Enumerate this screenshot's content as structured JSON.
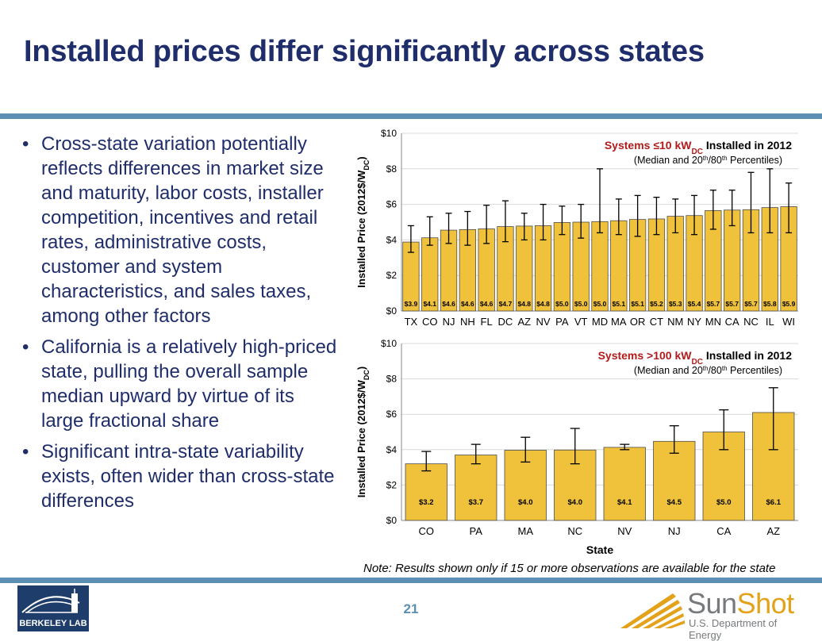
{
  "slide": {
    "title": "Installed prices differ significantly across states",
    "page_number": "21",
    "bullet_char": "•",
    "bullets": [
      "Cross-state variation potentially reflects differences in market size and maturity, labor costs, installer competition, incentives and retail rates, administrative costs, customer and system characteristics, and sales taxes, among other factors",
      "California is a relatively high-priced state, pulling the overall sample median upward by virtue of its large fractional share",
      "Significant intra-state variability exists, often wider than cross-state differences"
    ],
    "note": "Note: Results shown only if 15 or more observations are available for the state",
    "left_logo": {
      "text": "BERKELEY LAB"
    },
    "right_logo": {
      "word_part1": "Sun",
      "word_part2": "Shot",
      "subtitle": "U.S. Department of Energy"
    }
  },
  "colors": {
    "title": "#1f2d6b",
    "rule": "#5b8fb3",
    "bar_fill": "#f0c13b",
    "bar_stroke": "#4d4d4d",
    "red": "#b01c1c",
    "grid": "#d9d9d9"
  },
  "chart_data": [
    {
      "type": "bar",
      "title_red": "Systems ≤10 kW",
      "title_red_sub": "DC",
      "title_black": " Installed in 2012",
      "subtitle_pre": "(Median and 20",
      "subtitle_sup1": "th",
      "subtitle_mid": "/80",
      "subtitle_sup2": "th",
      "subtitle_post": " Percentiles)",
      "ylabel_main": "Installed Price (2012$/W",
      "ylabel_sub": "DC",
      "ylabel_end": ")",
      "xlabel": "",
      "ylim": [
        0,
        10
      ],
      "yticks": [
        "$0",
        "$2",
        "$4",
        "$6",
        "$8",
        "$10"
      ],
      "grid": true,
      "categories": [
        "TX",
        "CO",
        "NJ",
        "NH",
        "FL",
        "DC",
        "AZ",
        "NV",
        "PA",
        "VT",
        "MD",
        "MA",
        "OR",
        "CT",
        "NM",
        "NY",
        "MN",
        "CA",
        "NC",
        "IL",
        "WI"
      ],
      "values": [
        3.88,
        4.12,
        4.55,
        4.58,
        4.62,
        4.75,
        4.78,
        4.8,
        4.98,
        5.0,
        5.03,
        5.08,
        5.15,
        5.18,
        5.33,
        5.37,
        5.65,
        5.68,
        5.7,
        5.82,
        5.87
      ],
      "value_labels": [
        "$3.9",
        "$4.1",
        "$4.6",
        "$4.6",
        "$4.6",
        "$4.7",
        "$4.8",
        "$4.8",
        "$5.0",
        "$5.0",
        "$5.0",
        "$5.1",
        "$5.1",
        "$5.2",
        "$5.3",
        "$5.4",
        "$5.7",
        "$5.7",
        "$5.7",
        "$5.8",
        "$5.9"
      ],
      "p20": [
        3.3,
        3.7,
        3.8,
        3.7,
        3.8,
        3.9,
        4.0,
        4.0,
        4.3,
        4.1,
        4.4,
        4.3,
        4.2,
        4.3,
        4.4,
        4.3,
        4.6,
        4.8,
        4.4,
        4.4,
        4.4
      ],
      "p80": [
        4.8,
        5.3,
        5.5,
        5.6,
        5.95,
        6.2,
        5.5,
        6.0,
        5.9,
        6.0,
        8.0,
        6.3,
        6.5,
        6.4,
        6.3,
        6.5,
        6.8,
        6.8,
        7.8,
        8.0,
        7.2
      ]
    },
    {
      "type": "bar",
      "title_red": "Systems >100 kW",
      "title_red_sub": "DC",
      "title_black": " Installed in 2012",
      "subtitle_pre": "(Median and 20",
      "subtitle_sup1": "th",
      "subtitle_mid": "/80",
      "subtitle_sup2": "th",
      "subtitle_post": " Percentiles)",
      "ylabel_main": "Installed Price (2012$/W",
      "ylabel_sub": "DC",
      "ylabel_end": ")",
      "xlabel": "State",
      "ylim": [
        0,
        10
      ],
      "yticks": [
        "$0",
        "$2",
        "$4",
        "$6",
        "$8",
        "$10"
      ],
      "grid": true,
      "categories": [
        "CO",
        "PA",
        "MA",
        "NC",
        "NV",
        "NJ",
        "CA",
        "AZ"
      ],
      "values": [
        3.2,
        3.7,
        3.97,
        3.98,
        4.13,
        4.47,
        5.0,
        6.1
      ],
      "value_labels": [
        "$3.2",
        "$3.7",
        "$4.0",
        "$4.0",
        "$4.1",
        "$4.5",
        "$5.0",
        "$6.1"
      ],
      "p20": [
        2.8,
        3.2,
        3.3,
        3.2,
        4.0,
        3.8,
        4.0,
        4.0
      ],
      "p80": [
        3.9,
        4.3,
        4.7,
        5.2,
        4.3,
        5.35,
        6.25,
        7.5
      ]
    }
  ]
}
